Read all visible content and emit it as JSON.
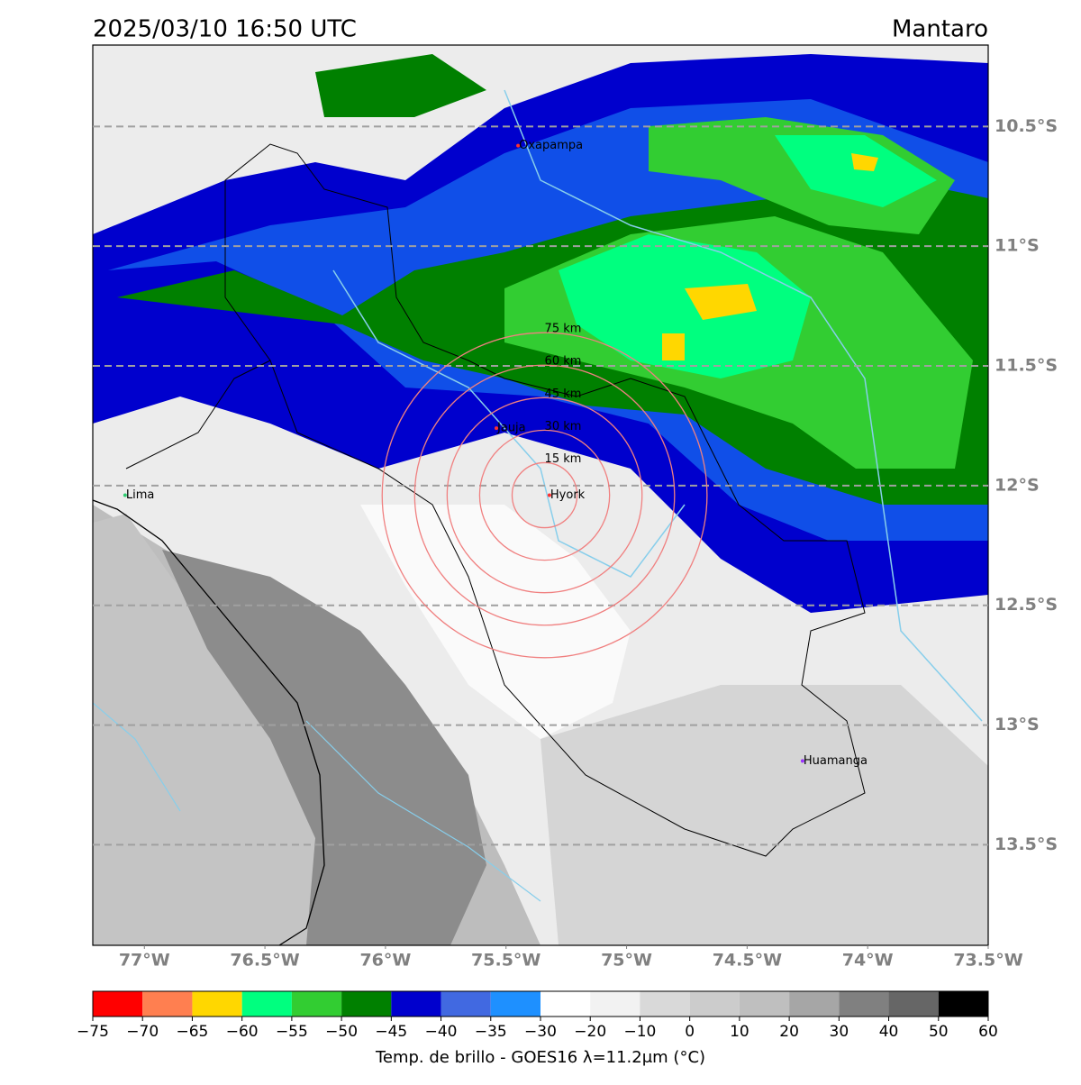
{
  "header": {
    "title": "2025/03/10 16:50 UTC",
    "region": "Mantaro"
  },
  "map": {
    "xlim": [
      -77.214,
      -73.5
    ],
    "ylim": [
      -13.92,
      -10.16
    ],
    "xticks": [
      {
        "value": -77,
        "label": "77°W"
      },
      {
        "value": -76.5,
        "label": "76.5°W"
      },
      {
        "value": -76,
        "label": "76°W"
      },
      {
        "value": -75.5,
        "label": "75.5°W"
      },
      {
        "value": -75,
        "label": "75°W"
      },
      {
        "value": -74.5,
        "label": "74.5°W"
      },
      {
        "value": -74,
        "label": "74°W"
      },
      {
        "value": -73.5,
        "label": "73.5°W"
      }
    ],
    "yticks": [
      {
        "value": -10.5,
        "label": "10.5°S"
      },
      {
        "value": -11,
        "label": "11°S"
      },
      {
        "value": -11.5,
        "label": "11.5°S"
      },
      {
        "value": -12,
        "label": "12°S"
      },
      {
        "value": -12.5,
        "label": "12.5°S"
      },
      {
        "value": -13,
        "label": "13°S"
      },
      {
        "value": -13.5,
        "label": "13.5°S"
      }
    ],
    "grid": true,
    "places": [
      {
        "name": "Oxapampa",
        "lon": -75.45,
        "lat": -10.58,
        "color": "#ff3030"
      },
      {
        "name": "Lima",
        "lon": -77.08,
        "lat": -12.04,
        "color": "#2ecc71"
      },
      {
        "name": "Jauja",
        "lon": -75.54,
        "lat": -11.76,
        "color": "#ff3030"
      },
      {
        "name": "Hyork",
        "lon": -75.32,
        "lat": -12.04,
        "color": "#ff3030"
      },
      {
        "name": "Huamanga",
        "lon": -74.27,
        "lat": -13.15,
        "color": "#9b30ff"
      }
    ],
    "rings": {
      "center": {
        "lon": -75.34,
        "lat": -12.04
      },
      "circles": [
        {
          "label": "15 km",
          "radius_km": 15
        },
        {
          "label": "30 km",
          "radius_km": 30
        },
        {
          "label": "45 km",
          "radius_km": 45
        },
        {
          "label": "60 km",
          "radius_km": 60
        },
        {
          "label": "75 km",
          "radius_km": 75
        }
      ]
    }
  },
  "colorbar": {
    "label": "Temp. de brillo - GOES16 λ=11.2μm (°C)",
    "bounds": [
      {
        "value": -75,
        "label": "−75"
      },
      {
        "value": -70,
        "label": "−70"
      },
      {
        "value": -65,
        "label": "−65"
      },
      {
        "value": -60,
        "label": "−60"
      },
      {
        "value": -55,
        "label": "−55"
      },
      {
        "value": -50,
        "label": "−50"
      },
      {
        "value": -45,
        "label": "−45"
      },
      {
        "value": -40,
        "label": "−40"
      },
      {
        "value": -35,
        "label": "−35"
      },
      {
        "value": -30,
        "label": "−30"
      },
      {
        "value": -20,
        "label": "−20"
      },
      {
        "value": -10,
        "label": "−10"
      },
      0,
      10,
      20,
      30,
      40,
      50,
      60
    ],
    "colors": [
      "#ff0000",
      "#ff7f50",
      "#ffd700",
      "#00ff7f",
      "#32cd32",
      "#008000",
      "#0000cd",
      "#4169e1",
      "#1e90ff",
      "#ffffff",
      "#f2f2f2",
      "#d9d9d9",
      "#cccccc",
      "#bfbfbf",
      "#a6a6a6",
      "#808080",
      "#666666",
      "#000000"
    ]
  }
}
